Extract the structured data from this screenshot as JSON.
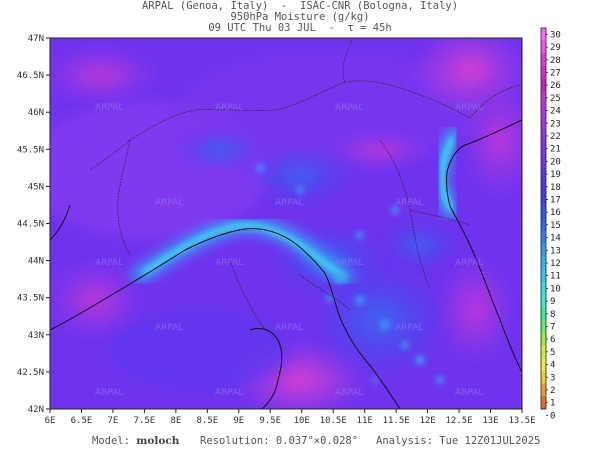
{
  "header": {
    "line1": "ARPAL (Genoa, Italy)  -  ISAC-CNR (Bologna, Italy)",
    "line2": "950hPa Moisture (g/kg)",
    "line3": "09 UTC Thu 03 JUL  -  τ = 45h"
  },
  "map": {
    "lon_ticks": [
      "6E",
      "6.5E",
      "7E",
      "7.5E",
      "8E",
      "8.5E",
      "9E",
      "9.5E",
      "10E",
      "10.5E",
      "11E",
      "11.5E",
      "12E",
      "12.5E",
      "13E",
      "13.5E"
    ],
    "lat_ticks": [
      "47N",
      "46.5N",
      "46N",
      "45.5N",
      "45N",
      "44.5N",
      "44N",
      "43.5N",
      "43N",
      "42.5N",
      "42N"
    ],
    "watermark": "ARPAL",
    "colors": {
      "base": "#6f33ee",
      "high_moisture": "#33c6ee",
      "low_moisture": "#e633c6"
    }
  },
  "colorbar": {
    "ticks": [
      "30",
      "29",
      "28",
      "27",
      "26",
      "25",
      "24",
      "23",
      "22",
      "21",
      "20",
      "19",
      "18",
      "17",
      "16",
      "15",
      "14",
      "13",
      "12",
      "11",
      "10",
      "9",
      "8",
      "7",
      "6",
      "5",
      "4",
      "3",
      "2",
      "1",
      "0"
    ],
    "colors": [
      "#ff66ff",
      "#f34df3",
      "#e633e6",
      "#d926d9",
      "#cc1acc",
      "#bf33d9",
      "#b233e6",
      "#a033ee",
      "#8f33ee",
      "#7f33ee",
      "#6f33ee",
      "#5f33ee",
      "#4f33ee",
      "#3f3fee",
      "#3355ee",
      "#3366ee",
      "#3380ee",
      "#3399ee",
      "#33b3ee",
      "#33c6ee",
      "#33ddee",
      "#33eecc",
      "#33ee99",
      "#66ee66",
      "#99ee33",
      "#ccee33",
      "#eeee33",
      "#eecc33",
      "#ee9933",
      "#ee6633"
    ]
  },
  "footer": {
    "model_label": "Model:",
    "model_value": "moloch",
    "resolution_label": "Resolution:",
    "resolution_value": "0.037°×0.028°",
    "analysis_label": "Analysis:",
    "analysis_value": "Tue 12Z01JUL2025"
  }
}
